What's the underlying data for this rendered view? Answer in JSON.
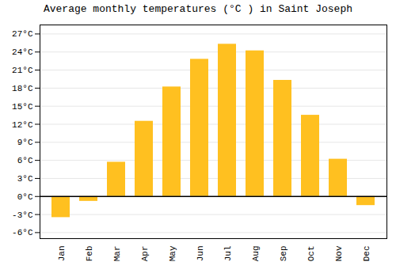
{
  "chart_data": {
    "type": "bar",
    "title": "Average monthly temperatures (°C ) in Saint Joseph",
    "categories": [
      "Jan",
      "Feb",
      "Mar",
      "Apr",
      "May",
      "Jun",
      "Jul",
      "Aug",
      "Sep",
      "Oct",
      "Nov",
      "Dec"
    ],
    "values": [
      -3.5,
      -0.8,
      5.7,
      12.5,
      18.2,
      22.8,
      25.3,
      24.2,
      19.3,
      13.5,
      6.2,
      -1.5
    ],
    "color": "#FFC020",
    "ylim": [
      -7,
      28.5
    ],
    "yticks": [
      {
        "value": -6,
        "label": "-6°C"
      },
      {
        "value": -3,
        "label": "-3°C"
      },
      {
        "value": 0,
        "label": "0°C"
      },
      {
        "value": 3,
        "label": "3°C"
      },
      {
        "value": 6,
        "label": "6°C"
      },
      {
        "value": 9,
        "label": "9°C"
      },
      {
        "value": 12,
        "label": "12°C"
      },
      {
        "value": 15,
        "label": "15°C"
      },
      {
        "value": 18,
        "label": "18°C"
      },
      {
        "value": 21,
        "label": "21°C"
      },
      {
        "value": 24,
        "label": "24°C"
      },
      {
        "value": 27,
        "label": "27°C"
      }
    ],
    "grid": true
  }
}
